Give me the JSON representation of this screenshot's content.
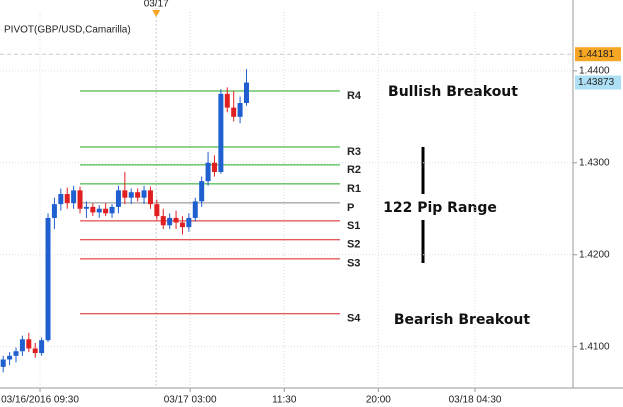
{
  "chart_data": {
    "type": "candlestick",
    "title": "PIVOT(GBP/USD,Camarilla)",
    "open": [
      1.4078,
      1.4086,
      1.409,
      1.4095,
      1.4108,
      1.4098,
      1.4093,
      1.4107,
      1.424,
      1.4255,
      1.4266,
      1.4256,
      1.427,
      1.425,
      1.4252,
      1.4246,
      1.425,
      1.4245,
      1.4252,
      1.427,
      1.4262,
      1.4268,
      1.4262,
      1.427,
      1.4255,
      1.4242,
      1.4232,
      1.424,
      1.4235,
      1.423,
      1.424,
      1.4258,
      1.428,
      1.43,
      1.429,
      1.4375,
      1.436,
      1.435,
      1.4365
    ],
    "high": [
      1.409,
      1.4094,
      1.4099,
      1.4112,
      1.4115,
      1.4104,
      1.411,
      1.4245,
      1.4262,
      1.4272,
      1.4273,
      1.4275,
      1.4274,
      1.4258,
      1.4256,
      1.4254,
      1.4256,
      1.4255,
      1.4275,
      1.429,
      1.4272,
      1.4272,
      1.4275,
      1.4274,
      1.426,
      1.425,
      1.4245,
      1.4248,
      1.4242,
      1.4245,
      1.4262,
      1.4285,
      1.4312,
      1.4308,
      1.438,
      1.4382,
      1.4378,
      1.4372,
      1.4402
    ],
    "low": [
      1.4072,
      1.408,
      1.4083,
      1.409,
      1.4094,
      1.4088,
      1.409,
      1.4105,
      1.4228,
      1.4248,
      1.425,
      1.425,
      1.4245,
      1.424,
      1.4242,
      1.424,
      1.4242,
      1.424,
      1.4245,
      1.4255,
      1.4255,
      1.4258,
      1.4255,
      1.425,
      1.4238,
      1.4228,
      1.4228,
      1.4228,
      1.4222,
      1.4225,
      1.4236,
      1.4252,
      1.4275,
      1.4285,
      1.4288,
      1.4355,
      1.4345,
      1.4343,
      1.4362
    ],
    "close": [
      1.4086,
      1.409,
      1.4095,
      1.4108,
      1.4098,
      1.4093,
      1.4107,
      1.424,
      1.4255,
      1.4266,
      1.4256,
      1.427,
      1.425,
      1.4252,
      1.4246,
      1.425,
      1.4245,
      1.4252,
      1.427,
      1.4262,
      1.4268,
      1.4262,
      1.427,
      1.4255,
      1.4242,
      1.4232,
      1.424,
      1.4235,
      1.423,
      1.424,
      1.4258,
      1.428,
      1.43,
      1.429,
      1.4375,
      1.436,
      1.435,
      1.4365,
      1.43873
    ],
    "up_color": "#1f5fd0",
    "down_color": "#e02020",
    "xlim": [
      -0.5,
      89
    ],
    "xticks": [
      {
        "value": 5.75,
        "label": "03/16/2016 09:30"
      },
      {
        "value": 29.2,
        "label": "03/17 03:00"
      },
      {
        "value": 43.9,
        "label": "11:30"
      },
      {
        "value": 58.6,
        "label": "20:00"
      },
      {
        "value": 73.7,
        "label": "03/18 04:30"
      }
    ],
    "marker": {
      "value": 23.9,
      "label": "03/17"
    },
    "ylim": [
      1.4055,
      1.4464
    ],
    "yticks": [
      {
        "value": 1.41,
        "label": "1.4100"
      },
      {
        "value": 1.42,
        "label": "1.4200"
      },
      {
        "value": 1.43,
        "label": "1.4300"
      },
      {
        "value": 1.44,
        "label": "1.4400"
      }
    ],
    "grid": true,
    "price_tags": [
      {
        "value": 1.44181,
        "color": "#f5a623"
      },
      {
        "value": 1.43873,
        "color": "#aee0f5"
      }
    ],
    "pivot_span": [
      12,
      52.6
    ],
    "pivots": [
      {
        "name": "R4",
        "value": 1.43781,
        "color": "#22aa22"
      },
      {
        "name": "R3",
        "value": 1.43172,
        "color": "#22aa22"
      },
      {
        "name": "R2",
        "value": 1.42977,
        "color": "#22aa22"
      },
      {
        "name": "R1",
        "value": 1.4277,
        "color": "#22aa22"
      },
      {
        "name": "P",
        "value": 1.42564,
        "color": "#888888"
      },
      {
        "name": "S1",
        "value": 1.42368,
        "color": "#dd2222"
      },
      {
        "name": "S2",
        "value": 1.42162,
        "color": "#dd2222"
      },
      {
        "name": "S3",
        "value": 1.41955,
        "color": "#dd2222"
      },
      {
        "name": "S4",
        "value": 1.41357,
        "color": "#dd2222"
      }
    ],
    "annotations": [
      "Bullish Breakout",
      "122 Pip Range",
      "Bearish Breakout"
    ]
  }
}
